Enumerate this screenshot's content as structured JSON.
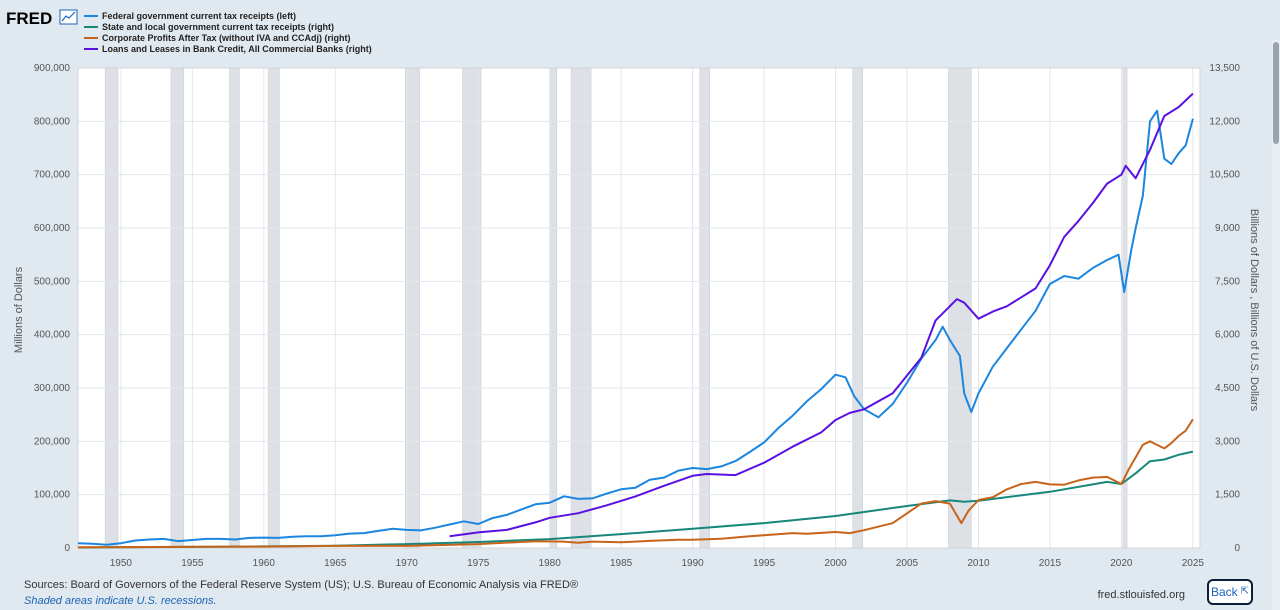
{
  "header": {
    "logo_text": "FRED"
  },
  "legend": [
    {
      "label": "Federal government current tax receipts (left)",
      "color": "#1a86e0"
    },
    {
      "label": "State and local government current tax receipts (right)",
      "color": "#17877a"
    },
    {
      "label": "Corporate Profits After Tax (without IVA and CCAdj) (right)",
      "color": "#c8641a"
    },
    {
      "label": "Loans and Leases in Bank Credit, All Commercial Banks (right)",
      "color": "#5a10e0"
    }
  ],
  "axes": {
    "left_title": "Millions of Dollars",
    "right_title": "Billions of Dollars , Billions of U.S. Dollars",
    "left_ticks": [
      "0",
      "100,000",
      "200,000",
      "300,000",
      "400,000",
      "500,000",
      "600,000",
      "700,000",
      "800,000",
      "900,000"
    ],
    "right_ticks": [
      "0",
      "1,500",
      "3,000",
      "4,500",
      "6,000",
      "7,500",
      "9,000",
      "10,500",
      "12,000",
      "13,500"
    ],
    "x_ticks": [
      "1950",
      "1955",
      "1960",
      "1965",
      "1970",
      "1975",
      "1980",
      "1985",
      "1990",
      "1995",
      "2000",
      "2005",
      "2010",
      "2015",
      "2020",
      "2025"
    ]
  },
  "footer": {
    "sources": "Sources: Board of Governors of the Federal Reserve System (US); U.S. Bureau of Economic Analysis via FRED®",
    "note": "Shaded areas indicate U.S. recessions.",
    "site": "fred.stlouisfed.org",
    "back_label": "Back"
  },
  "chart_data": {
    "type": "line",
    "title": "",
    "xlabel": "",
    "ylabel": "Millions of Dollars",
    "y2label": "Billions of Dollars , Billions of U.S. Dollars",
    "xlim": [
      1947,
      2025.5
    ],
    "ylim": [
      0,
      900000
    ],
    "y2lim": [
      0,
      13500
    ],
    "grid": true,
    "legend_position": "top-left",
    "recessions": [
      [
        1948.9,
        1949.8
      ],
      [
        1953.5,
        1954.4
      ],
      [
        1957.6,
        1958.3
      ],
      [
        1960.3,
        1961.1
      ],
      [
        1969.9,
        1970.9
      ],
      [
        1973.9,
        1975.2
      ],
      [
        1980.0,
        1980.5
      ],
      [
        1981.5,
        1982.9
      ],
      [
        1990.5,
        1991.2
      ],
      [
        2001.2,
        2001.9
      ],
      [
        2007.9,
        2009.5
      ],
      [
        2020.1,
        2020.4
      ]
    ],
    "series": [
      {
        "name": "Federal government current tax receipts (left)",
        "axis": "left",
        "color": "#1a86e0",
        "points": [
          [
            1947,
            9000
          ],
          [
            1948,
            8000
          ],
          [
            1949,
            6000
          ],
          [
            1950,
            9000
          ],
          [
            1951,
            14000
          ],
          [
            1952,
            16000
          ],
          [
            1953,
            17000
          ],
          [
            1954,
            13000
          ],
          [
            1955,
            15000
          ],
          [
            1956,
            17000
          ],
          [
            1957,
            17000
          ],
          [
            1958,
            16000
          ],
          [
            1959,
            19000
          ],
          [
            1960,
            19500
          ],
          [
            1961,
            19000
          ],
          [
            1962,
            21000
          ],
          [
            1963,
            22000
          ],
          [
            1964,
            22000
          ],
          [
            1965,
            24000
          ],
          [
            1966,
            27000
          ],
          [
            1967,
            28000
          ],
          [
            1968,
            32000
          ],
          [
            1969,
            36000
          ],
          [
            1970,
            34000
          ],
          [
            1971,
            33000
          ],
          [
            1972,
            38000
          ],
          [
            1973,
            44000
          ],
          [
            1974,
            50000
          ],
          [
            1975,
            45000
          ],
          [
            1976,
            56000
          ],
          [
            1977,
            62000
          ],
          [
            1978,
            72000
          ],
          [
            1979,
            82000
          ],
          [
            1980,
            85000
          ],
          [
            1981,
            97000
          ],
          [
            1982,
            92000
          ],
          [
            1983,
            93000
          ],
          [
            1984,
            102000
          ],
          [
            1985,
            110000
          ],
          [
            1986,
            113000
          ],
          [
            1987,
            128000
          ],
          [
            1988,
            132000
          ],
          [
            1989,
            145000
          ],
          [
            1990,
            150000
          ],
          [
            1991,
            148000
          ],
          [
            1992,
            153000
          ],
          [
            1993,
            163000
          ],
          [
            1994,
            180000
          ],
          [
            1995,
            198000
          ],
          [
            1996,
            225000
          ],
          [
            1997,
            248000
          ],
          [
            1998,
            275000
          ],
          [
            1999,
            298000
          ],
          [
            2000,
            325000
          ],
          [
            2000.7,
            320000
          ],
          [
            2001.3,
            285000
          ],
          [
            2002,
            260000
          ],
          [
            2003,
            245000
          ],
          [
            2004,
            270000
          ],
          [
            2005,
            310000
          ],
          [
            2006,
            355000
          ],
          [
            2007,
            390000
          ],
          [
            2007.5,
            415000
          ],
          [
            2008,
            390000
          ],
          [
            2008.7,
            360000
          ],
          [
            2009,
            290000
          ],
          [
            2009.5,
            255000
          ],
          [
            2010,
            290000
          ],
          [
            2011,
            340000
          ],
          [
            2012,
            375000
          ],
          [
            2013,
            410000
          ],
          [
            2014,
            445000
          ],
          [
            2015,
            495000
          ],
          [
            2016,
            510000
          ],
          [
            2017,
            505000
          ],
          [
            2018,
            525000
          ],
          [
            2019,
            540000
          ],
          [
            2019.8,
            550000
          ],
          [
            2020.2,
            480000
          ],
          [
            2020.7,
            560000
          ],
          [
            2021,
            600000
          ],
          [
            2021.5,
            660000
          ],
          [
            2022,
            800000
          ],
          [
            2022.5,
            820000
          ],
          [
            2023,
            730000
          ],
          [
            2023.5,
            720000
          ],
          [
            2024,
            740000
          ],
          [
            2024.5,
            755000
          ],
          [
            2025,
            805000
          ]
        ]
      },
      {
        "name": "State and local government current tax receipts (right)",
        "axis": "right",
        "color": "#17877a",
        "points": [
          [
            1947,
            15
          ],
          [
            1950,
            20
          ],
          [
            1955,
            30
          ],
          [
            1960,
            45
          ],
          [
            1965,
            65
          ],
          [
            1970,
            110
          ],
          [
            1975,
            170
          ],
          [
            1980,
            250
          ],
          [
            1985,
            390
          ],
          [
            1990,
            540
          ],
          [
            1995,
            700
          ],
          [
            2000,
            900
          ],
          [
            2005,
            1180
          ],
          [
            2008,
            1340
          ],
          [
            2009,
            1300
          ],
          [
            2010,
            1330
          ],
          [
            2015,
            1580
          ],
          [
            2019,
            1860
          ],
          [
            2020,
            1800
          ],
          [
            2021,
            2100
          ],
          [
            2022,
            2440
          ],
          [
            2023,
            2490
          ],
          [
            2024,
            2620
          ],
          [
            2025,
            2710
          ]
        ]
      },
      {
        "name": "Corporate Profits After Tax (without IVA and CCAdj) (right)",
        "axis": "right",
        "color": "#c8641a",
        "points": [
          [
            1947,
            20
          ],
          [
            1950,
            25
          ],
          [
            1955,
            35
          ],
          [
            1960,
            40
          ],
          [
            1965,
            60
          ],
          [
            1970,
            60
          ],
          [
            1975,
            110
          ],
          [
            1979,
            190
          ],
          [
            1981,
            180
          ],
          [
            1982,
            150
          ],
          [
            1983,
            180
          ],
          [
            1985,
            160
          ],
          [
            1987,
            200
          ],
          [
            1989,
            230
          ],
          [
            1990,
            230
          ],
          [
            1992,
            260
          ],
          [
            1994,
            330
          ],
          [
            1997,
            420
          ],
          [
            1998,
            400
          ],
          [
            2000,
            450
          ],
          [
            2001,
            420
          ],
          [
            2002,
            500
          ],
          [
            2004,
            700
          ],
          [
            2006,
            1250
          ],
          [
            2007,
            1320
          ],
          [
            2008,
            1250
          ],
          [
            2008.8,
            700
          ],
          [
            2009.3,
            1050
          ],
          [
            2010,
            1350
          ],
          [
            2011,
            1430
          ],
          [
            2012,
            1650
          ],
          [
            2013,
            1800
          ],
          [
            2014,
            1860
          ],
          [
            2015,
            1790
          ],
          [
            2016,
            1780
          ],
          [
            2017,
            1900
          ],
          [
            2018,
            1980
          ],
          [
            2019,
            2000
          ],
          [
            2020,
            1800
          ],
          [
            2020.5,
            2200
          ],
          [
            2021,
            2550
          ],
          [
            2021.5,
            2900
          ],
          [
            2022,
            3000
          ],
          [
            2022.5,
            2900
          ],
          [
            2023,
            2800
          ],
          [
            2023.5,
            2950
          ],
          [
            2024,
            3150
          ],
          [
            2024.5,
            3300
          ],
          [
            2025,
            3620
          ]
        ]
      },
      {
        "name": "Loans and Leases in Bank Credit, All Commercial Banks (right)",
        "axis": "right",
        "color": "#5a10e0",
        "points": [
          [
            1973,
            330
          ],
          [
            1975,
            440
          ],
          [
            1977,
            510
          ],
          [
            1979,
            720
          ],
          [
            1980,
            850
          ],
          [
            1982,
            980
          ],
          [
            1984,
            1200
          ],
          [
            1986,
            1450
          ],
          [
            1988,
            1750
          ],
          [
            1990,
            2030
          ],
          [
            1991,
            2080
          ],
          [
            1993,
            2050
          ],
          [
            1995,
            2400
          ],
          [
            1997,
            2850
          ],
          [
            1999,
            3250
          ],
          [
            2000,
            3600
          ],
          [
            2001,
            3800
          ],
          [
            2002,
            3900
          ],
          [
            2004,
            4350
          ],
          [
            2006,
            5350
          ],
          [
            2007,
            6400
          ],
          [
            2008,
            6800
          ],
          [
            2008.5,
            7000
          ],
          [
            2009,
            6900
          ],
          [
            2010,
            6450
          ],
          [
            2011,
            6650
          ],
          [
            2012,
            6800
          ],
          [
            2013,
            7050
          ],
          [
            2014,
            7300
          ],
          [
            2015,
            7950
          ],
          [
            2016,
            8750
          ],
          [
            2017,
            9200
          ],
          [
            2018,
            9700
          ],
          [
            2019,
            10250
          ],
          [
            2020,
            10500
          ],
          [
            2020.3,
            10750
          ],
          [
            2020.8,
            10500
          ],
          [
            2021,
            10400
          ],
          [
            2022,
            11200
          ],
          [
            2023,
            12150
          ],
          [
            2024,
            12400
          ],
          [
            2025,
            12780
          ]
        ]
      }
    ]
  }
}
